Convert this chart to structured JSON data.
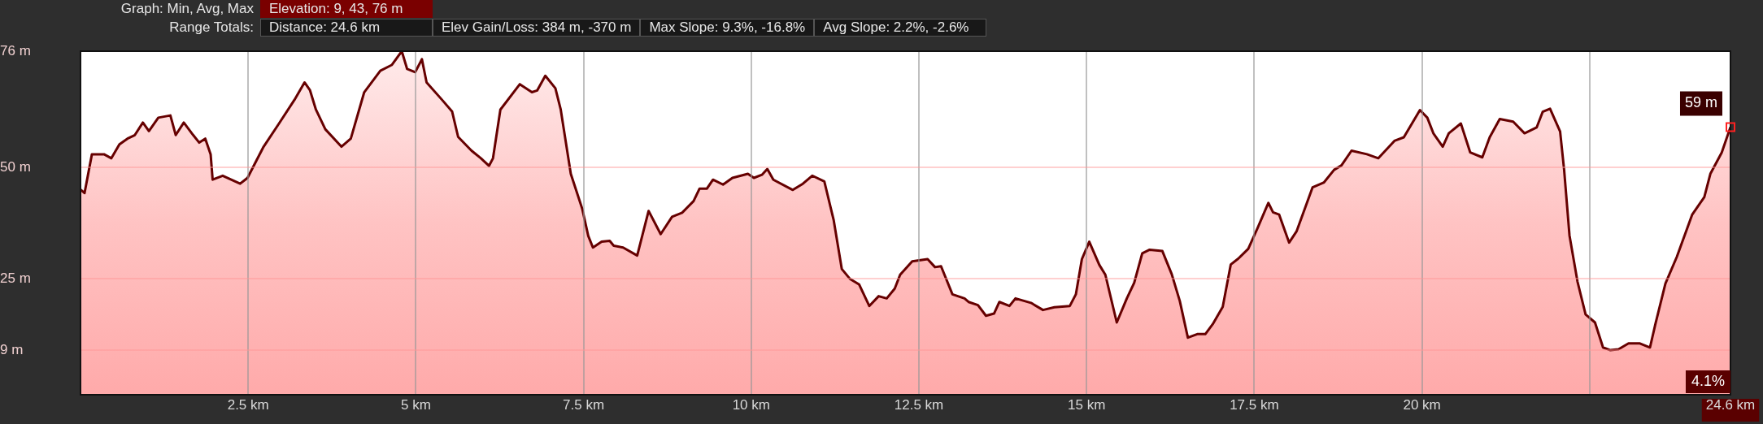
{
  "chart_data": {
    "type": "area",
    "color": "#660000",
    "x": [
      0,
      0.06,
      0.17,
      0.35,
      0.46,
      0.58,
      0.7,
      0.81,
      0.93,
      1.02,
      1.16,
      1.34,
      1.42,
      1.54,
      1.68,
      1.77,
      1.86,
      1.94,
      1.97,
      2.12,
      2.38,
      2.49,
      2.73,
      2.96,
      3.19,
      3.34,
      3.42,
      3.51,
      3.65,
      3.89,
      4.03,
      4.23,
      4.47,
      4.64,
      4.79,
      4.87,
      4.99,
      5.09,
      5.16,
      5.39,
      5.54,
      5.63,
      5.83,
      5.97,
      6.09,
      6.15,
      6.26,
      6.55,
      6.73,
      6.81,
      6.93,
      7.08,
      7.16,
      7.31,
      7.48,
      7.57,
      7.64,
      7.77,
      7.89,
      7.95,
      8.09,
      8.3,
      8.47,
      8.65,
      8.82,
      8.97,
      9.14,
      9.23,
      9.34,
      9.43,
      9.58,
      9.72,
      9.95,
      10.04,
      10.16,
      10.24,
      10.33,
      10.62,
      10.77,
      10.91,
      11.09,
      11.23,
      11.35,
      11.47,
      11.61,
      11.76,
      11.9,
      12.02,
      12.14,
      12.22,
      12.4,
      12.63,
      12.74,
      12.83,
      13,
      13.18,
      13.24,
      13.38,
      13.5,
      13.62,
      13.7,
      13.85,
      13.94,
      14.17,
      14.35,
      14.52,
      14.75,
      14.84,
      14.93,
      15.04,
      15.19,
      15.28,
      15.45,
      15.6,
      15.71,
      15.83,
      15.94,
      16.13,
      16.27,
      16.39,
      16.51,
      16.65,
      16.77,
      16.88,
      17.03,
      17.15,
      17.26,
      17.41,
      17.55,
      17.71,
      17.78,
      17.87,
      18.02,
      18.13,
      18.37,
      18.54,
      18.69,
      18.8,
      18.95,
      19.18,
      19.35,
      19.59,
      19.73,
      19.97,
      20.08,
      20.17,
      20.31,
      20.4,
      20.58,
      20.72,
      20.9,
      21.01,
      21.16,
      21.36,
      21.53,
      21.71,
      21.8,
      21.91,
      22.06,
      22.12,
      22.2,
      22.32,
      22.44,
      22.58,
      22.7,
      22.81,
      22.93,
      23.08,
      23.25,
      23.4,
      23.48,
      23.63,
      23.8,
      24.03,
      24.21,
      24.3,
      24.47,
      24.6
    ],
    "values": [
      45,
      44.2,
      52.9,
      52.9,
      52,
      55.1,
      56.4,
      57.2,
      60,
      58.1,
      61.1,
      61.6,
      57.2,
      60,
      57.2,
      55.5,
      56.4,
      52.9,
      47.2,
      48.1,
      46.3,
      47.6,
      54.6,
      59.8,
      65.1,
      69,
      67.3,
      62.9,
      58.5,
      54.6,
      56.4,
      66.8,
      71.6,
      72.9,
      76,
      72,
      71.3,
      74.2,
      69,
      65.1,
      62.5,
      56.8,
      53.7,
      52,
      50.3,
      52,
      62.9,
      68.6,
      66.8,
      67.2,
      70.5,
      67.7,
      62.9,
      48.5,
      40.7,
      34.6,
      32,
      33.3,
      33.5,
      32.4,
      32,
      30.2,
      40.2,
      35,
      38.9,
      39.8,
      42.4,
      45.2,
      45.2,
      47.2,
      46.1,
      47.6,
      48.5,
      47.6,
      48.3,
      49.6,
      47.2,
      44.9,
      46.3,
      48.1,
      46.8,
      38.1,
      27.2,
      25,
      23.7,
      18.9,
      21.1,
      20.6,
      22.8,
      25.9,
      28.9,
      29.4,
      27.6,
      27.8,
      21.5,
      20.6,
      19.8,
      19.1,
      16.7,
      17.2,
      19.8,
      18.9,
      20.6,
      19.6,
      18,
      18.6,
      18.9,
      21.5,
      29.4,
      33.3,
      28.1,
      25.9,
      15.2,
      20.6,
      24.1,
      30.7,
      31.5,
      31.2,
      26,
      20,
      11.8,
      12.6,
      12.6,
      14.8,
      18.7,
      28.2,
      29.5,
      31.7,
      36.4,
      42,
      39.9,
      39.4,
      33.1,
      35.6,
      45.5,
      46.6,
      49.4,
      50.4,
      53.7,
      52.9,
      52,
      55.9,
      56.7,
      62.8,
      61.1,
      57.6,
      54.6,
      57.6,
      59.8,
      53.3,
      52.2,
      56.7,
      60.8,
      60.2,
      57.6,
      58.9,
      62.4,
      63.1,
      58,
      49.4,
      34.7,
      24.3,
      17,
      15.2,
      9.6,
      9,
      9.2,
      10.5,
      10.5,
      9.6,
      14.8,
      23.9,
      29.9,
      39.4,
      43.3,
      48.5,
      53.3,
      59
    ],
    "xlim": [
      0,
      24.6
    ],
    "xticks": [
      {
        "value": 2.5,
        "label": "2.5 km"
      },
      {
        "value": 5,
        "label": "5 km"
      },
      {
        "value": 7.5,
        "label": "7.5 km"
      },
      {
        "value": 10,
        "label": "10 km"
      },
      {
        "value": 12.5,
        "label": "12.5 km"
      },
      {
        "value": 15,
        "label": "15 km"
      },
      {
        "value": 17.5,
        "label": "17.5 km"
      },
      {
        "value": 20,
        "label": "20 km"
      },
      {
        "value": 22.5,
        "label": null
      },
      {
        "value": 24.6,
        "label": "24.6 km"
      }
    ],
    "ylim": [
      -1,
      76
    ],
    "yticks": [
      {
        "value": 76,
        "label": "76 m"
      },
      {
        "value": 50,
        "label": "50 m"
      },
      {
        "value": 25,
        "label": "25 m"
      },
      {
        "value": 9,
        "label": "9 m"
      }
    ],
    "grid": true,
    "annotations": [
      "Graph: Min, Avg, Max",
      "Elevation: 9, 43, 76 m",
      "Range Totals:",
      "Distance: 24.6 km",
      "Elev Gain/Loss: 384 m, -370 m",
      "Max Slope: 9.3%, -16.8%",
      "Avg Slope: 2.2%, -2.6%",
      "4.1%",
      {
        "text": "59 m",
        "x": 24.6,
        "y": 59
      }
    ]
  }
}
